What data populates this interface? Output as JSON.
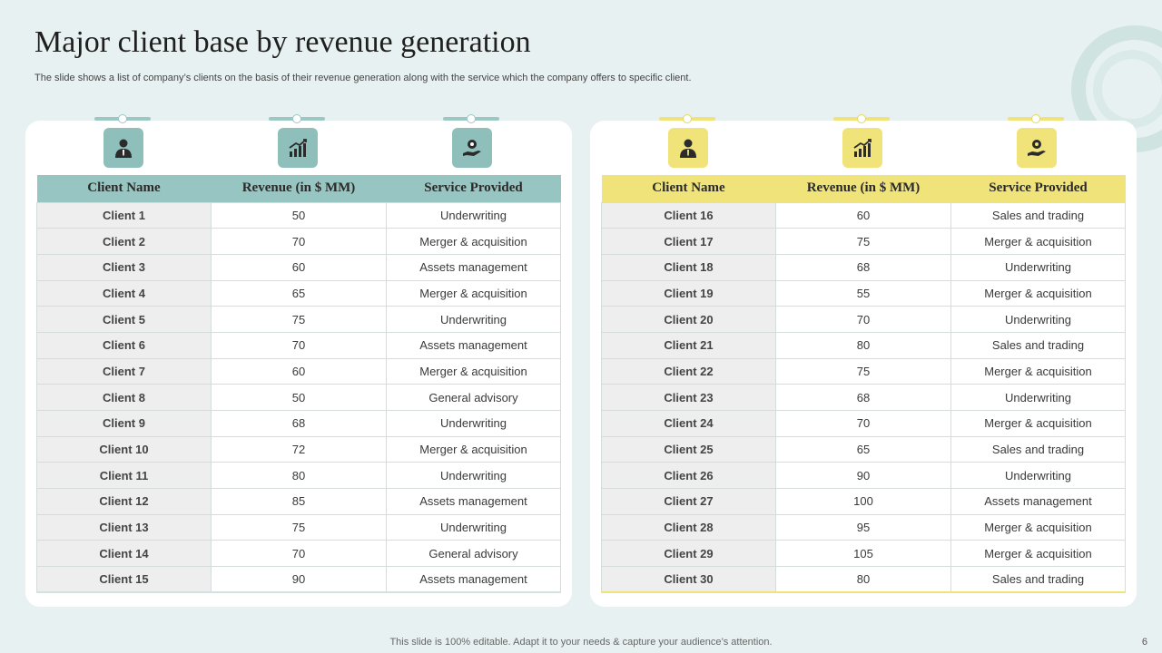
{
  "title": "Major client base by revenue generation",
  "subtitle": "The slide shows a list of company’s clients on the basis of their revenue generation along with the service which the company offers to  specific client.",
  "footer": "This slide is 100% editable. Adapt it to your needs & capture your audience’s attention.",
  "page_number": "6",
  "colors": {
    "teal": "#97c5c1",
    "yellow": "#f0e37a"
  },
  "icons": [
    "businessman-icon",
    "growth-chart-icon",
    "service-hand-icon"
  ],
  "headers": [
    "Client Name",
    "Revenue (in $ MM)",
    "Service Provided"
  ],
  "left_table": {
    "rows": [
      {
        "client": "Client 1",
        "revenue": "50",
        "service": "Underwriting"
      },
      {
        "client": "Client 2",
        "revenue": "70",
        "service": "Merger  & acquisition"
      },
      {
        "client": "Client 3",
        "revenue": "60",
        "service": "Assets management"
      },
      {
        "client": "Client 4",
        "revenue": "65",
        "service": "Merger  & acquisition"
      },
      {
        "client": "Client 5",
        "revenue": "75",
        "service": "Underwriting"
      },
      {
        "client": "Client 6",
        "revenue": "70",
        "service": "Assets management"
      },
      {
        "client": "Client 7",
        "revenue": "60",
        "service": "Merger  & acquisition"
      },
      {
        "client": "Client 8",
        "revenue": "50",
        "service": "General  advisory"
      },
      {
        "client": "Client 9",
        "revenue": "68",
        "service": "Underwriting"
      },
      {
        "client": "Client 10",
        "revenue": "72",
        "service": "Merger  & acquisition"
      },
      {
        "client": "Client 11",
        "revenue": "80",
        "service": "Underwriting"
      },
      {
        "client": "Client 12",
        "revenue": "85",
        "service": "Assets management"
      },
      {
        "client": "Client 13",
        "revenue": "75",
        "service": "Underwriting"
      },
      {
        "client": "Client 14",
        "revenue": "70",
        "service": "General  advisory"
      },
      {
        "client": "Client 15",
        "revenue": "90",
        "service": "Assets management"
      }
    ]
  },
  "right_table": {
    "rows": [
      {
        "client": "Client 16",
        "revenue": "60",
        "service": "Sales and trading"
      },
      {
        "client": "Client 17",
        "revenue": "75",
        "service": "Merger  & acquisition"
      },
      {
        "client": "Client 18",
        "revenue": "68",
        "service": "Underwriting"
      },
      {
        "client": "Client 19",
        "revenue": "55",
        "service": "Merger  & acquisition"
      },
      {
        "client": "Client 20",
        "revenue": "70",
        "service": "Underwriting"
      },
      {
        "client": "Client 21",
        "revenue": "80",
        "service": "Sales and trading"
      },
      {
        "client": "Client 22",
        "revenue": "75",
        "service": "Merger  & acquisition"
      },
      {
        "client": "Client 23",
        "revenue": "68",
        "service": "Underwriting"
      },
      {
        "client": "Client 24",
        "revenue": "70",
        "service": "Merger  & acquisition"
      },
      {
        "client": "Client 25",
        "revenue": "65",
        "service": "Sales and trading"
      },
      {
        "client": "Client 26",
        "revenue": "90",
        "service": "Underwriting"
      },
      {
        "client": "Client 27",
        "revenue": "100",
        "service": "Assets management"
      },
      {
        "client": "Client 28",
        "revenue": "95",
        "service": "Merger  & acquisition"
      },
      {
        "client": "Client 29",
        "revenue": "105",
        "service": "Merger  & acquisition"
      },
      {
        "client": "Client 30",
        "revenue": "80",
        "service": "Sales and trading"
      }
    ]
  }
}
